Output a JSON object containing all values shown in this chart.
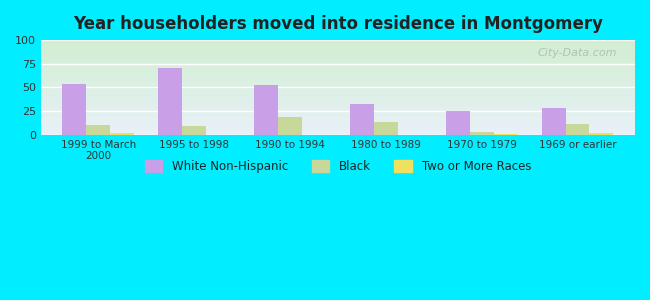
{
  "title": "Year householders moved into residence in Montgomery",
  "categories": [
    "1999 to March\n2000",
    "1995 to 1998",
    "1990 to 1994",
    "1980 to 1989",
    "1970 to 1979",
    "1969 or earlier"
  ],
  "white_non_hispanic": [
    54,
    71,
    53,
    32,
    25,
    28
  ],
  "black": [
    10,
    9,
    19,
    14,
    3,
    11
  ],
  "two_or_more_races": [
    2,
    0,
    0,
    0,
    1,
    2
  ],
  "bar_colors": {
    "white_non_hispanic": "#c9a0e8",
    "black": "#c8d89a",
    "two_or_more_races": "#f0e060"
  },
  "ylim": [
    0,
    100
  ],
  "yticks": [
    0,
    25,
    50,
    75,
    100
  ],
  "background_color": "#00eeff",
  "legend_labels": [
    "White Non-Hispanic",
    "Black",
    "Two or More Races"
  ],
  "bar_width": 0.25
}
